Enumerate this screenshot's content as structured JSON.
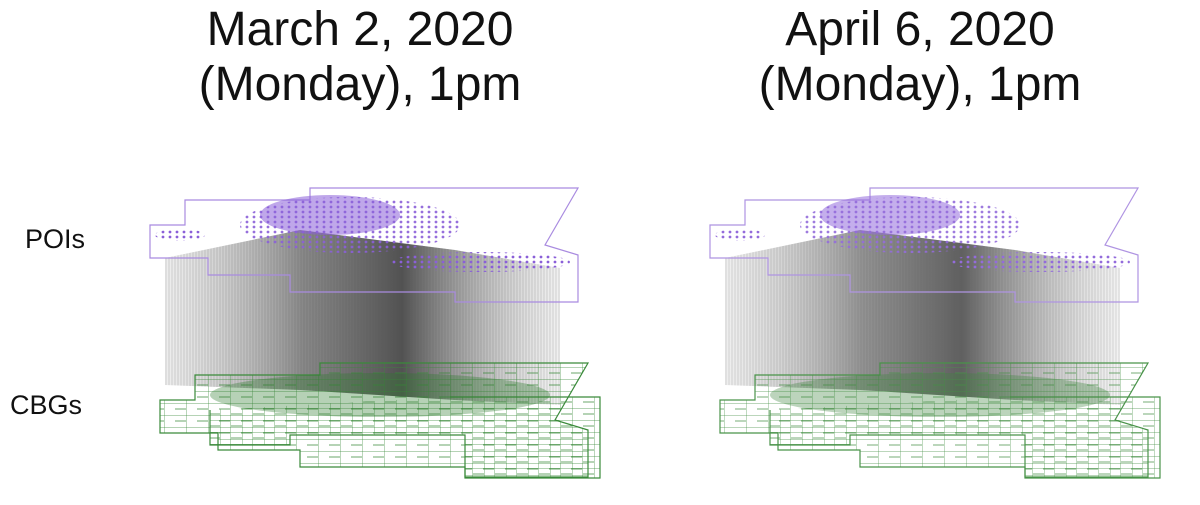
{
  "panels": [
    {
      "title_lines": [
        "March 2, 2020",
        "(Monday), 1pm"
      ]
    },
    {
      "title_lines": [
        "April 6, 2020",
        "(Monday), 1pm"
      ]
    }
  ],
  "row_labels": [
    "POIs",
    "CBGs"
  ]
}
